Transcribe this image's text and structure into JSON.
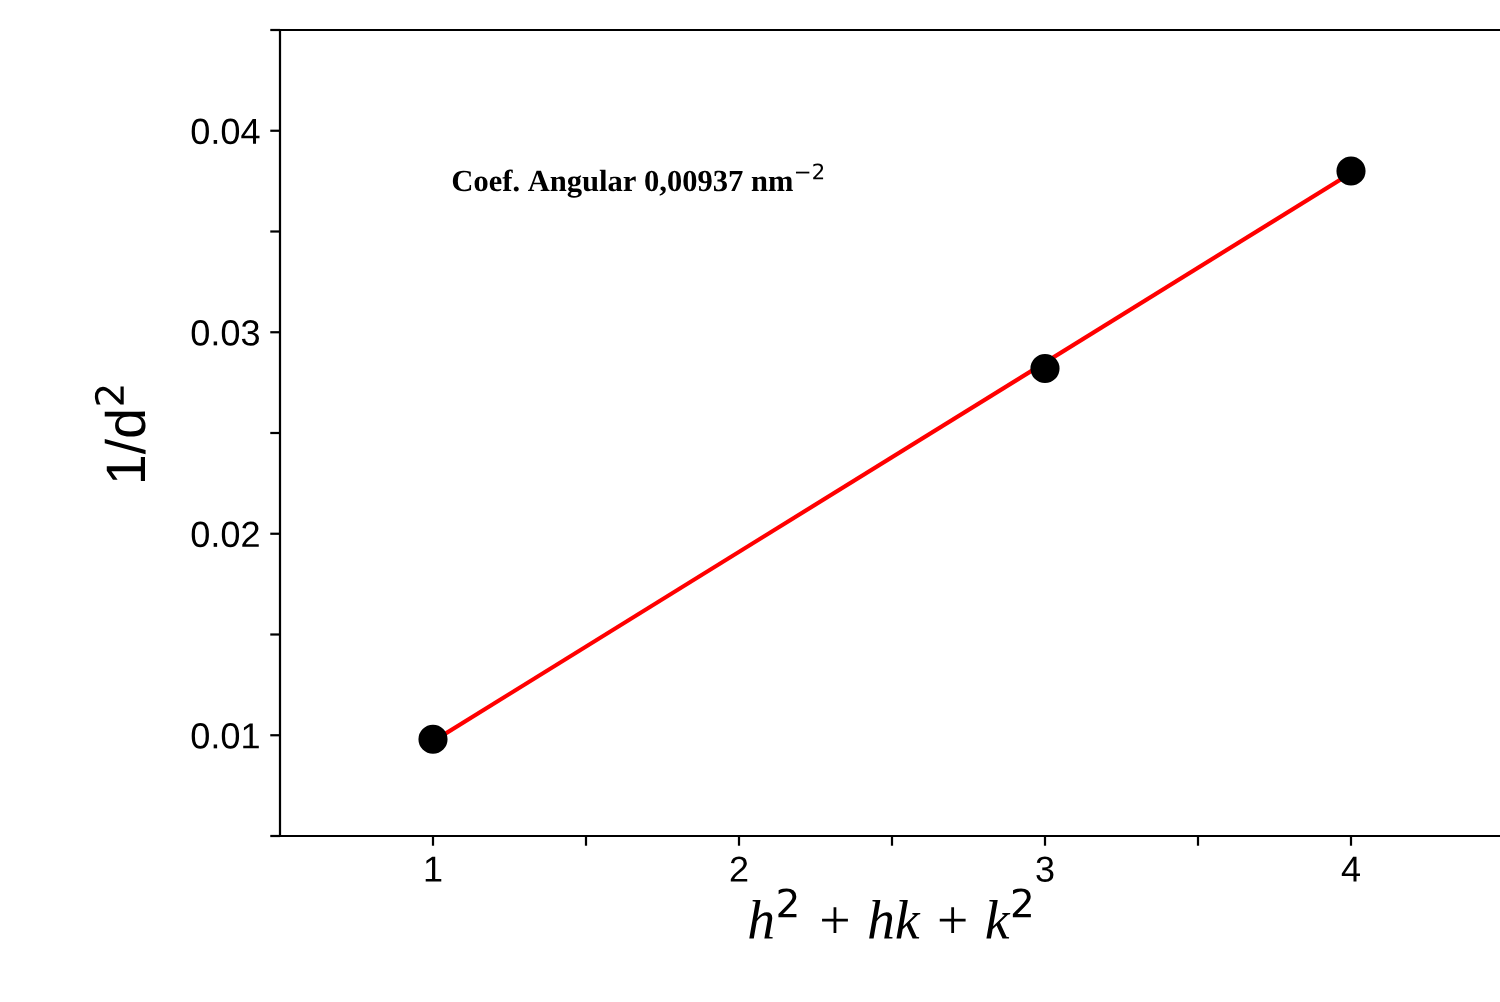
{
  "chart_data": {
    "type": "scatter",
    "xlabel": "h$^{2}$ + hk + k$^{2}$",
    "ylabel": "1/d$^{2}$",
    "annotations": [
      "Coef. Angular 0,00937 nm$^{−2}$"
    ],
    "series": [
      {
        "color": "#000000",
        "marker": "circle",
        "x": [
          1,
          3,
          4
        ],
        "values": [
          0.0098,
          0.0282,
          0.038
        ]
      },
      {
        "type": "line",
        "color": "#ff0000",
        "x": [
          1,
          4
        ],
        "values": [
          0.0097,
          0.0379
        ]
      }
    ],
    "xlim": [
      0.5,
      4.5
    ],
    "xticks": [
      1,
      {
        "value": 1.5,
        "label": null
      },
      2,
      {
        "value": 2.5,
        "label": null
      },
      3,
      {
        "value": 3.5,
        "label": null
      },
      4,
      {
        "value": 4.5,
        "label": null
      }
    ],
    "ylim": [
      0.005,
      0.045
    ],
    "yticks": [
      {
        "value": 0.005,
        "label": null
      },
      0.01,
      {
        "value": 0.015,
        "label": null
      },
      0.02,
      {
        "value": 0.025,
        "label": null
      },
      0.03,
      {
        "value": 0.035,
        "label": null
      },
      0.04,
      {
        "value": 0.045,
        "label": null
      }
    ],
    "grid": false,
    "legend": false
  }
}
